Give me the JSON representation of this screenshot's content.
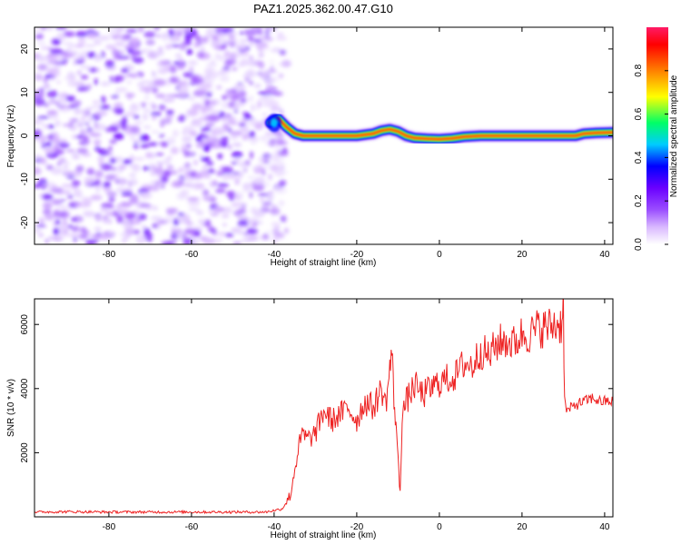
{
  "chart_data": [
    {
      "type": "heatmap",
      "title": "PAZ1.2025.362.00.47.G10",
      "xlabel": "Height of straight line (km)",
      "ylabel": "Frequency (Hz)",
      "xlim": [
        -98,
        42
      ],
      "ylim": [
        -25,
        25
      ],
      "x_ticks": [
        -80,
        -60,
        -40,
        -20,
        0,
        20,
        40
      ],
      "y_ticks": [
        -20,
        -10,
        0,
        10,
        20
      ],
      "colorbar": {
        "label": "Normalized spectral amplitude",
        "range": [
          0,
          1
        ],
        "ticks": [
          0.0,
          0.2,
          0.4,
          0.6,
          0.8
        ],
        "colormap": [
          "#ffffff",
          "#d9b8ff",
          "#9a4dff",
          "#6a00ff",
          "#0000ff",
          "#00ccff",
          "#00ff66",
          "#ffff00",
          "#ff8000",
          "#ff0000",
          "#ff1a66"
        ]
      },
      "noise_region": {
        "x_range": [
          -98,
          -37
        ],
        "y_range": [
          -25,
          25
        ]
      },
      "ridge": {
        "x": [
          -41,
          -39,
          -37,
          -35,
          -33,
          -30,
          -26,
          -20,
          -16,
          -14,
          -12,
          -10,
          -8,
          -6,
          -3,
          0,
          3,
          6,
          10,
          15,
          20,
          25,
          30,
          33,
          35,
          38,
          42
        ],
        "freq": [
          3,
          4,
          2,
          0.5,
          0,
          0,
          0,
          0,
          0.5,
          1.2,
          1.5,
          1,
          0,
          -0.5,
          -0.7,
          -0.8,
          -0.6,
          -0.2,
          0,
          0,
          0,
          0,
          0,
          0,
          0.5,
          0.7,
          0.8
        ]
      }
    },
    {
      "type": "line",
      "xlabel": "Height of straight line (km)",
      "ylabel": "SNR (10 * v/v)",
      "xlim": [
        -98,
        42
      ],
      "ylim": [
        0,
        6800
      ],
      "x_ticks": [
        -80,
        -60,
        -40,
        -20,
        0,
        20,
        40
      ],
      "y_ticks": [
        2000,
        4000,
        6000
      ],
      "color": "#ee2222",
      "series": [
        {
          "x": [
            -98,
            -90,
            -80,
            -70,
            -60,
            -50,
            -42,
            -38,
            -36,
            -35,
            -34,
            -33,
            -32,
            -30,
            -28,
            -26,
            -24,
            -22,
            -20,
            -18,
            -16,
            -14,
            -13,
            -12,
            -11.5,
            -11,
            -10.5,
            -10,
            -9.5,
            -9,
            -8,
            -6,
            -4,
            -2,
            0,
            2,
            4,
            6,
            8,
            10,
            12,
            14,
            16,
            18,
            20,
            22,
            24,
            26,
            28,
            29.5,
            30,
            30.3,
            31,
            33,
            35,
            37,
            39,
            42
          ],
          "y": [
            150,
            160,
            150,
            150,
            150,
            150,
            150,
            250,
            700,
            1500,
            2200,
            2600,
            2400,
            2600,
            3300,
            3000,
            3200,
            3400,
            3000,
            3600,
            3400,
            4000,
            3500,
            4600,
            5200,
            3600,
            3000,
            1700,
            800,
            3200,
            3600,
            4100,
            3800,
            4000,
            4200,
            4300,
            4400,
            4800,
            4700,
            5200,
            5000,
            5400,
            5500,
            5400,
            5700,
            5700,
            5900,
            5900,
            6000,
            6000,
            6800,
            3500,
            3300,
            3500,
            3600,
            3700,
            3600,
            3600
          ]
        }
      ]
    }
  ]
}
